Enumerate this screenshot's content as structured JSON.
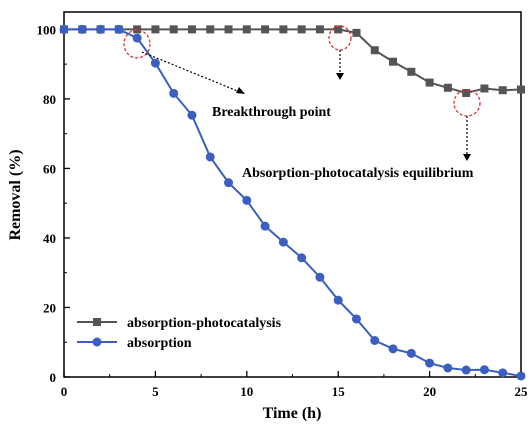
{
  "chart_data": {
    "type": "line",
    "xlabel": "Time (h)",
    "ylabel": "Removal (%)",
    "xlim": [
      0,
      25
    ],
    "ylim": [
      0,
      105
    ],
    "xticks": [
      "0",
      "5",
      "10",
      "15",
      "20",
      "25"
    ],
    "yticks": [
      "0",
      "20",
      "40",
      "60",
      "80",
      "100"
    ],
    "grid": false,
    "legend_position": "bottom-left",
    "series": [
      {
        "name": "absorption-photocatalysis",
        "color": "#555555",
        "marker": "square",
        "x": [
          0,
          1,
          2,
          3,
          4,
          5,
          6,
          7,
          8,
          9,
          10,
          11,
          12,
          13,
          14,
          15,
          16,
          17,
          18,
          19,
          20,
          21,
          22,
          23,
          24,
          25
        ],
        "y": [
          100,
          100,
          100,
          100,
          100,
          100,
          100,
          100,
          100,
          100,
          100,
          100,
          100,
          100,
          100,
          100,
          99,
          94,
          90.7,
          87.8,
          84.7,
          83.2,
          81.7,
          83,
          82.5,
          82.7
        ]
      },
      {
        "name": "absorption",
        "color": "#3a5fc0",
        "marker": "circle",
        "x": [
          0,
          1,
          2,
          3,
          4,
          5,
          6,
          7,
          8,
          9,
          10,
          11,
          12,
          13,
          14,
          15,
          16,
          17,
          18,
          19,
          20,
          21,
          22,
          23,
          24,
          25
        ],
        "y": [
          100,
          100,
          100,
          100,
          97.5,
          90.3,
          81.6,
          75.3,
          63.3,
          55.9,
          50.8,
          43.4,
          38.8,
          34.3,
          28.7,
          22.1,
          16.7,
          10.5,
          8.1,
          6.8,
          4,
          2.6,
          2,
          2.1,
          1.2,
          0.3
        ]
      }
    ],
    "annotations": [
      {
        "text": "Breakthrough point"
      },
      {
        "text": "Absorption-photocatalysis equilibrium"
      }
    ]
  }
}
